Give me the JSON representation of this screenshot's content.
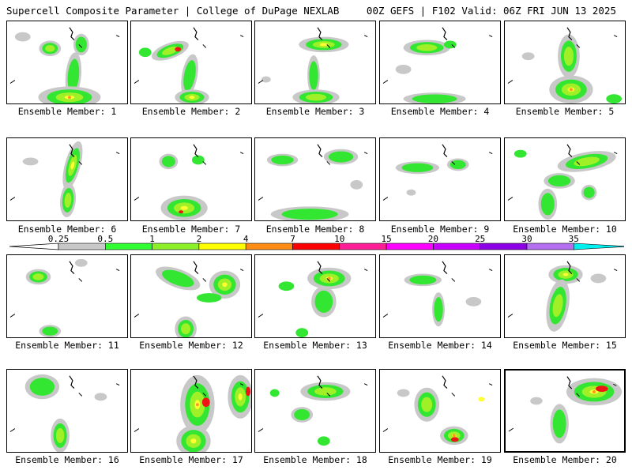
{
  "header": {
    "left": "Supercell Composite Parameter | College of DuPage NEXLAB",
    "right": "00Z GEFS | F102 Valid: 06Z FRI JUN 13 2025"
  },
  "members": [
    {
      "caption": "Ensemble Member: 1"
    },
    {
      "caption": "Ensemble Member: 2"
    },
    {
      "caption": "Ensemble Member: 3"
    },
    {
      "caption": "Ensemble Member: 4"
    },
    {
      "caption": "Ensemble Member: 5"
    },
    {
      "caption": "Ensemble Member: 6"
    },
    {
      "caption": "Ensemble Member: 7"
    },
    {
      "caption": "Ensemble Member: 8"
    },
    {
      "caption": "Ensemble Member: 9"
    },
    {
      "caption": "Ensemble Member: 10"
    },
    {
      "caption": "Ensemble Member: 11"
    },
    {
      "caption": "Ensemble Member: 12"
    },
    {
      "caption": "Ensemble Member: 13"
    },
    {
      "caption": "Ensemble Member: 14"
    },
    {
      "caption": "Ensemble Member: 15"
    },
    {
      "caption": "Ensemble Member: 16"
    },
    {
      "caption": "Ensemble Member: 17"
    },
    {
      "caption": "Ensemble Member: 18"
    },
    {
      "caption": "Ensemble Member: 19"
    },
    {
      "caption": "Ensemble Member: 20",
      "selected": true
    }
  ],
  "colorbar": {
    "levels": [
      "0.25",
      "0.5",
      "1",
      "2",
      "4",
      "7",
      "10",
      "15",
      "20",
      "25",
      "30",
      "35"
    ],
    "colors": [
      "#c8c8c8",
      "#32ff32",
      "#8cf028",
      "#ffff00",
      "#ff8c14",
      "#ff0000",
      "#ff1e96",
      "#ff00ff",
      "#c800ff",
      "#8c00e6",
      "#b46ef0",
      "#00f0f0"
    ]
  },
  "field_colors": {
    "gray": "#c8c8c8",
    "green": "#32e632",
    "yellowgreen": "#a0f028",
    "yellow": "#ffff32",
    "orange": "#ff9628",
    "red": "#f01414"
  }
}
